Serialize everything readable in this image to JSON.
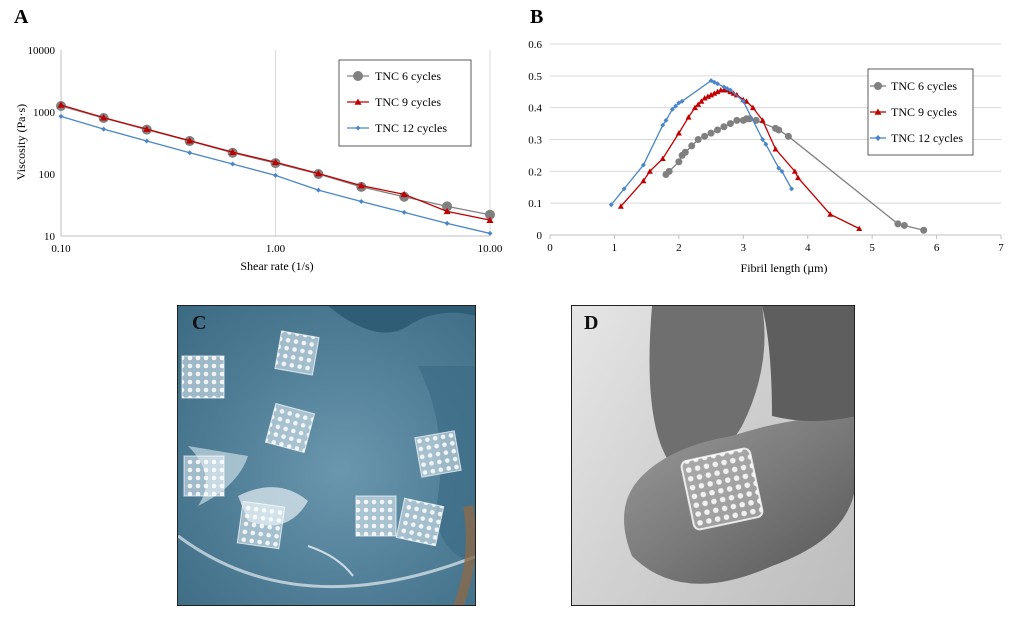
{
  "figure": {
    "panels": {
      "a": "A",
      "b": "B",
      "c": "C",
      "d": "D"
    }
  },
  "chart_data": [
    {
      "panel": "A",
      "type": "line",
      "xscale": "log",
      "yscale": "log",
      "xlabel": "Shear rate (1/s)",
      "ylabel": "Viscosity (Pa·s)",
      "xlim": [
        0.1,
        10
      ],
      "ylim": [
        10,
        10000
      ],
      "x_ticks": [
        "0.10",
        "1.00",
        "10.00"
      ],
      "y_ticks": [
        "10",
        "100",
        "1000",
        "10000"
      ],
      "legend_position": "top-right",
      "series": [
        {
          "name": "TNC 6 cycles",
          "color": "#808080",
          "marker": "circle",
          "x": [
            0.1,
            0.158,
            0.251,
            0.398,
            0.631,
            1.0,
            1.585,
            2.512,
            3.981,
            6.31,
            10.0
          ],
          "y": [
            1250,
            800,
            520,
            340,
            220,
            150,
            100,
            62,
            43,
            30,
            22
          ]
        },
        {
          "name": "TNC 9 cycles",
          "color": "#c00000",
          "marker": "triangle",
          "x": [
            0.1,
            0.158,
            0.251,
            0.398,
            0.631,
            1.0,
            1.585,
            2.512,
            3.981,
            6.31,
            10.0
          ],
          "y": [
            1300,
            810,
            530,
            345,
            225,
            155,
            102,
            65,
            47,
            25,
            18
          ]
        },
        {
          "name": "TNC 12 cycles",
          "color": "#4a86c8",
          "marker": "diamond",
          "x": [
            0.1,
            0.158,
            0.251,
            0.398,
            0.631,
            1.0,
            1.585,
            2.512,
            3.981,
            6.31,
            10.0
          ],
          "y": [
            850,
            530,
            340,
            220,
            145,
            95,
            55,
            36,
            24,
            16,
            11
          ]
        }
      ]
    },
    {
      "panel": "B",
      "type": "line",
      "xlabel": "Fibril length (µm)",
      "ylabel": "",
      "xlim": [
        0,
        7
      ],
      "ylim": [
        0,
        0.6
      ],
      "x_ticks": [
        "0",
        "1",
        "2",
        "3",
        "4",
        "5",
        "6",
        "7"
      ],
      "y_ticks": [
        "0",
        "0.1",
        "0.2",
        "0.3",
        "0.4",
        "0.5",
        "0.6"
      ],
      "grid": "horizontal",
      "legend_position": "right",
      "series": [
        {
          "name": "TNC 6 cycles",
          "color": "#808080",
          "marker": "circle",
          "x": [
            1.8,
            1.85,
            2.0,
            2.05,
            2.1,
            2.2,
            2.3,
            2.4,
            2.5,
            2.6,
            2.7,
            2.8,
            2.9,
            3.0,
            3.05,
            3.1,
            3.2,
            3.5,
            3.55,
            3.7,
            5.4,
            5.5,
            5.8
          ],
          "y": [
            0.19,
            0.2,
            0.23,
            0.25,
            0.26,
            0.28,
            0.3,
            0.31,
            0.32,
            0.33,
            0.34,
            0.35,
            0.36,
            0.36,
            0.365,
            0.365,
            0.36,
            0.335,
            0.33,
            0.31,
            0.035,
            0.03,
            0.015
          ]
        },
        {
          "name": "TNC 9 cycles",
          "color": "#c00000",
          "marker": "triangle",
          "x": [
            1.1,
            1.45,
            1.55,
            1.75,
            2.0,
            2.15,
            2.25,
            2.3,
            2.35,
            2.4,
            2.45,
            2.5,
            2.55,
            2.6,
            2.65,
            2.7,
            2.75,
            2.8,
            2.85,
            2.9,
            3.0,
            3.05,
            3.15,
            3.3,
            3.5,
            3.8,
            3.85,
            4.35,
            4.8
          ],
          "y": [
            0.09,
            0.17,
            0.2,
            0.24,
            0.32,
            0.37,
            0.4,
            0.41,
            0.42,
            0.43,
            0.435,
            0.44,
            0.445,
            0.45,
            0.455,
            0.455,
            0.455,
            0.45,
            0.445,
            0.44,
            0.425,
            0.42,
            0.4,
            0.36,
            0.27,
            0.2,
            0.18,
            0.065,
            0.02
          ]
        },
        {
          "name": "TNC 12 cycles",
          "color": "#4a86c8",
          "marker": "diamond",
          "x": [
            0.95,
            1.15,
            1.45,
            1.75,
            1.8,
            1.9,
            1.95,
            2.0,
            2.05,
            2.5,
            2.55,
            2.6,
            2.7,
            2.75,
            2.8,
            3.0,
            3.3,
            3.35,
            3.55,
            3.6,
            3.75
          ],
          "y": [
            0.095,
            0.145,
            0.22,
            0.345,
            0.36,
            0.395,
            0.405,
            0.415,
            0.42,
            0.485,
            0.48,
            0.475,
            0.465,
            0.46,
            0.455,
            0.42,
            0.3,
            0.285,
            0.21,
            0.2,
            0.145
          ]
        }
      ]
    }
  ]
}
